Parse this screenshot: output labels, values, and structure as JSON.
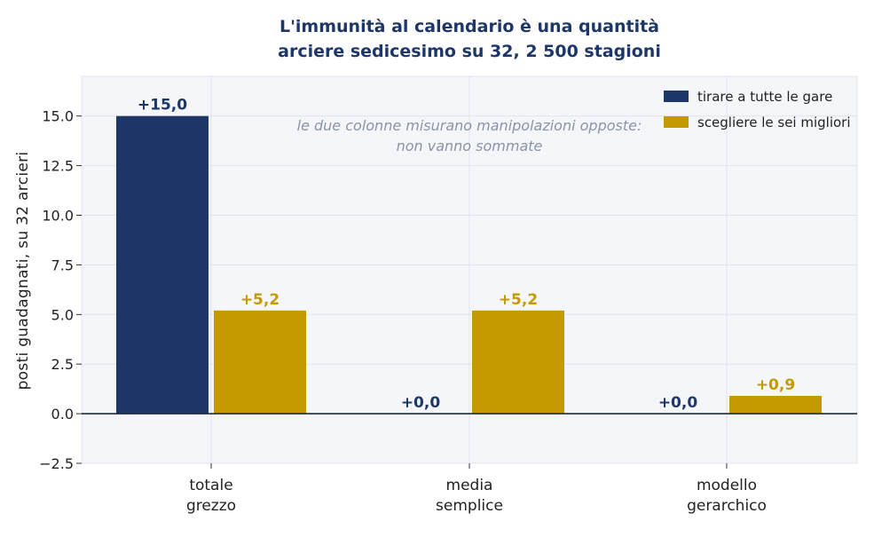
{
  "chart_data": {
    "type": "bar",
    "title_lines": [
      "L'immunità al calendario è una quantità",
      "arciere sedicesimo su 32, 2 500 stagioni"
    ],
    "ylabel": "posti guadagnati, su 32 arcieri",
    "xlabel": "",
    "ylim": [
      -2.5,
      17.0
    ],
    "yticks": [
      -2.5,
      0.0,
      2.5,
      5.0,
      7.5,
      10.0,
      12.5,
      15.0
    ],
    "ytick_labels": [
      "−2.5",
      "0.0",
      "2.5",
      "5.0",
      "7.5",
      "10.0",
      "12.5",
      "15.0"
    ],
    "grid": true,
    "legend_position": "top-right",
    "categories": [
      [
        "totale",
        "grezzo"
      ],
      [
        "media",
        "semplice"
      ],
      [
        "modello",
        "gerarchico"
      ]
    ],
    "series": [
      {
        "name": "tirare a tutte le gare",
        "color": "#1d3868",
        "values": [
          15.0,
          0.0,
          0.0
        ],
        "labels": [
          "+15,0",
          "+0,0",
          "+0,0"
        ]
      },
      {
        "name": "scegliere le sei migliori",
        "color": "#c49a00",
        "values": [
          5.2,
          5.2,
          0.9
        ],
        "labels": [
          "+5,2",
          "+5,2",
          "+0,9"
        ]
      }
    ],
    "annotation_lines": [
      "le due colonne misurano manipolazioni opposte:",
      "non vanno sommate"
    ]
  }
}
